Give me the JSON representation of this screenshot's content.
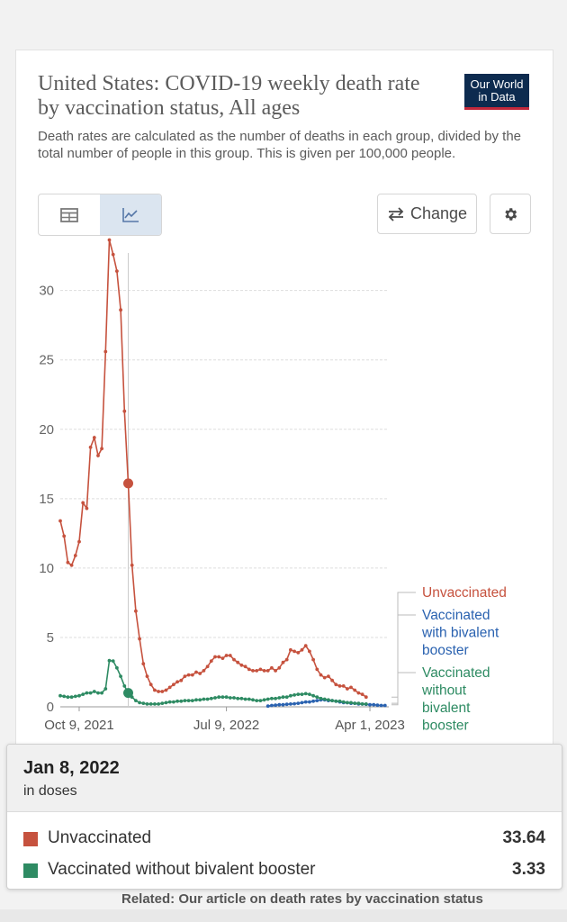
{
  "header": {
    "title": "United States: COVID-19 weekly death rate by vaccination status, All ages",
    "subtitle": "Death rates are calculated as the number of deaths in each group, divided by the total number of people in this group. This is given per 100,000 people.",
    "logo_line1": "Our World",
    "logo_line2": "in Data"
  },
  "controls": {
    "table_tab": "table-icon",
    "chart_tab": "line-chart-icon",
    "change_label": "Change",
    "settings": "gear-icon"
  },
  "colors": {
    "unvaccinated": "#c6523e",
    "bivalent": "#2a62b0",
    "without_bivalent": "#2e8b63"
  },
  "chart_data": {
    "type": "line",
    "x_ticks": [
      "Oct 9, 2021",
      "Jul 9, 2022",
      "Apr 1, 2023"
    ],
    "y_ticks": [
      0,
      5,
      10,
      15,
      20,
      25,
      30
    ],
    "ylim": [
      0,
      34
    ],
    "x_range": [
      "2021-09-04",
      "2023-05-06"
    ],
    "grid": true,
    "legend": "right",
    "highlight_date": "2022-01-08",
    "series": [
      {
        "name": "Unvaccinated",
        "color": "#c6523e",
        "start": "2021-09-04",
        "values": [
          13.4,
          12.3,
          10.4,
          10.2,
          10.9,
          11.9,
          14.7,
          14.3,
          18.7,
          19.4,
          18.1,
          18.6,
          25.6,
          33.64,
          32.6,
          31.4,
          28.6,
          21.3,
          16.1,
          10.2,
          6.9,
          4.9,
          3.1,
          2.2,
          1.6,
          1.2,
          1.1,
          1.1,
          1.2,
          1.4,
          1.6,
          1.8,
          1.9,
          2.2,
          2.3,
          2.3,
          2.5,
          2.4,
          2.6,
          2.9,
          3.3,
          3.6,
          3.6,
          3.5,
          3.7,
          3.7,
          3.4,
          3.2,
          3.0,
          2.9,
          2.7,
          2.6,
          2.6,
          2.7,
          2.6,
          2.6,
          2.8,
          2.6,
          2.8,
          3.2,
          3.4,
          4.1,
          4.0,
          3.9,
          4.1,
          4.4,
          4.0,
          3.4,
          2.7,
          2.3,
          2.1,
          2.2,
          1.9,
          1.6,
          1.5,
          1.5,
          1.3,
          1.4,
          1.2,
          1.0,
          0.9,
          0.7
        ]
      },
      {
        "name": "Vaccinated with bivalent booster",
        "color": "#2a62b0",
        "start": "2022-09-24",
        "values": [
          0.05,
          0.1,
          0.12,
          0.15,
          0.15,
          0.18,
          0.2,
          0.22,
          0.25,
          0.3,
          0.35,
          0.35,
          0.4,
          0.45,
          0.5,
          0.5,
          0.45,
          0.45,
          0.4,
          0.35,
          0.3,
          0.3,
          0.25,
          0.25,
          0.2,
          0.2,
          0.18,
          0.15,
          0.15,
          0.12,
          0.1,
          0.1
        ]
      },
      {
        "name": "Vaccinated without bivalent booster",
        "color": "#2e8b63",
        "start": "2021-09-04",
        "values": [
          0.8,
          0.75,
          0.7,
          0.7,
          0.75,
          0.8,
          0.9,
          1.0,
          1.0,
          1.1,
          1.0,
          1.0,
          1.3,
          3.33,
          3.3,
          2.8,
          2.2,
          1.5,
          1.0,
          0.7,
          0.45,
          0.3,
          0.25,
          0.2,
          0.2,
          0.2,
          0.2,
          0.25,
          0.3,
          0.35,
          0.35,
          0.4,
          0.4,
          0.45,
          0.45,
          0.45,
          0.5,
          0.5,
          0.55,
          0.55,
          0.6,
          0.65,
          0.7,
          0.7,
          0.7,
          0.65,
          0.65,
          0.6,
          0.6,
          0.55,
          0.55,
          0.5,
          0.45,
          0.45,
          0.5,
          0.55,
          0.6,
          0.6,
          0.65,
          0.7,
          0.7,
          0.8,
          0.85,
          0.9,
          0.9,
          0.95,
          0.9,
          0.8,
          0.7,
          0.6,
          0.55,
          0.5,
          0.45,
          0.4,
          0.4,
          0.35,
          0.3,
          0.3,
          0.25,
          0.25,
          0.2,
          0.2
        ]
      }
    ],
    "legend_lines": {
      "unvaccinated": [
        "Unvaccinated"
      ],
      "bivalent": [
        "Vaccinated",
        "with bivalent",
        "booster"
      ],
      "without_bivalent": [
        "Vaccinated",
        "without",
        "bivalent",
        "booster"
      ]
    }
  },
  "tooltip": {
    "date": "Jan 8, 2022",
    "unit": "in doses",
    "rows": [
      {
        "name": "Unvaccinated",
        "value": "33.64",
        "color": "#c6523e"
      },
      {
        "name": "Vaccinated without bivalent booster",
        "value": "3.33",
        "color": "#2e8b63"
      }
    ]
  },
  "footer": {
    "related": "Related: Our article on death rates by vaccination status"
  }
}
